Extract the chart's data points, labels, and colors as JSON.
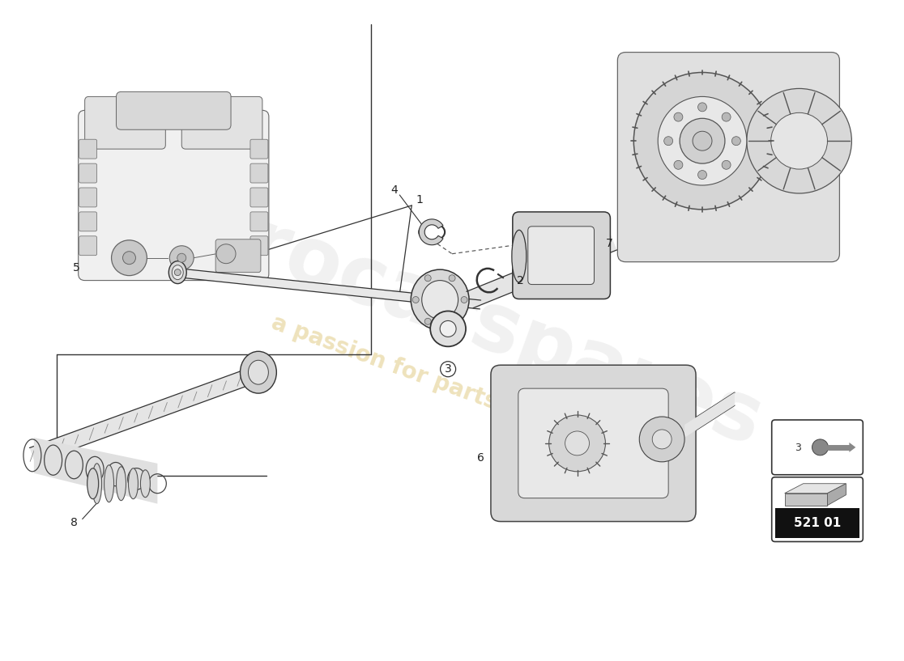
{
  "bg_color": "#ffffff",
  "line_color": "#1a1a1a",
  "watermark_text": "a passion for parts since 1982",
  "watermark_color": "#c8a020",
  "watermark_alpha": 0.3,
  "logo_text": "eurocarspares",
  "logo_color": "#b0b0b0",
  "logo_alpha": 0.18,
  "part_number": "521 01",
  "fig_width": 11.0,
  "fig_height": 8.0,
  "dpi": 100,
  "bracket_color": "#222222",
  "part_line_color": "#333333",
  "label_fontsize": 10,
  "label_color": "#222222",
  "leader_lw": 0.8,
  "shaft_color": "#e8e8e8",
  "shaft_edge_color": "#333333",
  "part_fill": "#d8d8d8",
  "part_edge": "#444444"
}
